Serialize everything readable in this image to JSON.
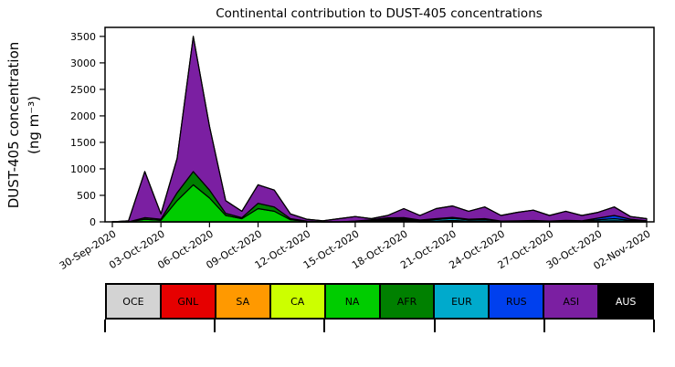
{
  "title": "Continental contribution to DUST-405 concentrations",
  "y_axis": {
    "label_line1": "DUST-405 concentration",
    "label_line2": "(ng m⁻³)",
    "ticks": [
      0,
      500,
      1000,
      1500,
      2000,
      2500,
      3000,
      3500
    ]
  },
  "x_axis": {
    "ticks": [
      {
        "index": 0,
        "label": "30-Sep-2020"
      },
      {
        "index": 3,
        "label": "03-Oct-2020"
      },
      {
        "index": 6,
        "label": "06-Oct-2020"
      },
      {
        "index": 9,
        "label": "09-Oct-2020"
      },
      {
        "index": 12,
        "label": "12-Oct-2020"
      },
      {
        "index": 15,
        "label": "15-Oct-2020"
      },
      {
        "index": 18,
        "label": "18-Oct-2020"
      },
      {
        "index": 21,
        "label": "21-Oct-2020"
      },
      {
        "index": 24,
        "label": "24-Oct-2020"
      },
      {
        "index": 27,
        "label": "27-Oct-2020"
      },
      {
        "index": 30,
        "label": "30-Oct-2020"
      },
      {
        "index": 33,
        "label": "02-Nov-2020"
      }
    ]
  },
  "chart_data": {
    "type": "area",
    "stacked": true,
    "title": "Continental contribution to DUST-405 concentrations",
    "ylabel": "DUST-405 concentration (ng m⁻³)",
    "ylim": [
      0,
      3670
    ],
    "grid": false,
    "legend_position": "bottom-bar",
    "x_dates": [
      "30-Sep-2020",
      "01-Oct-2020",
      "02-Oct-2020",
      "03-Oct-2020",
      "04-Oct-2020",
      "05-Oct-2020",
      "06-Oct-2020",
      "07-Oct-2020",
      "08-Oct-2020",
      "09-Oct-2020",
      "10-Oct-2020",
      "11-Oct-2020",
      "12-Oct-2020",
      "13-Oct-2020",
      "14-Oct-2020",
      "15-Oct-2020",
      "16-Oct-2020",
      "17-Oct-2020",
      "18-Oct-2020",
      "19-Oct-2020",
      "20-Oct-2020",
      "21-Oct-2020",
      "22-Oct-2020",
      "23-Oct-2020",
      "24-Oct-2020",
      "25-Oct-2020",
      "26-Oct-2020",
      "27-Oct-2020",
      "28-Oct-2020",
      "29-Oct-2020",
      "30-Oct-2020",
      "31-Oct-2020",
      "01-Nov-2020",
      "02-Nov-2020"
    ],
    "series": [
      {
        "name": "OCE",
        "color": "#d3d3d3",
        "values": [
          0,
          0,
          0,
          0,
          0,
          0,
          0,
          0,
          0,
          0,
          0,
          0,
          0,
          0,
          0,
          0,
          0,
          0,
          0,
          0,
          0,
          0,
          0,
          0,
          0,
          0,
          0,
          0,
          0,
          0,
          0,
          0,
          0,
          0
        ]
      },
      {
        "name": "GNL",
        "color": "#e60000",
        "values": [
          0,
          0,
          0,
          0,
          0,
          0,
          0,
          0,
          0,
          0,
          0,
          0,
          0,
          0,
          0,
          0,
          10,
          15,
          5,
          0,
          0,
          0,
          0,
          0,
          0,
          0,
          0,
          0,
          0,
          0,
          0,
          0,
          0,
          0
        ]
      },
      {
        "name": "SA",
        "color": "#ff9900",
        "values": [
          0,
          0,
          0,
          0,
          0,
          0,
          0,
          0,
          0,
          0,
          0,
          0,
          0,
          0,
          0,
          0,
          5,
          10,
          5,
          0,
          0,
          0,
          0,
          0,
          0,
          0,
          0,
          0,
          0,
          0,
          0,
          0,
          0,
          0
        ]
      },
      {
        "name": "CA",
        "color": "#ccff00",
        "values": [
          0,
          0,
          0,
          0,
          0,
          0,
          0,
          0,
          0,
          0,
          0,
          0,
          0,
          0,
          0,
          0,
          10,
          20,
          10,
          0,
          0,
          0,
          0,
          0,
          0,
          0,
          0,
          0,
          0,
          0,
          0,
          0,
          0,
          0
        ]
      },
      {
        "name": "NA",
        "color": "#00cc00",
        "values": [
          0,
          0,
          50,
          30,
          400,
          700,
          450,
          120,
          60,
          250,
          200,
          40,
          10,
          0,
          0,
          10,
          10,
          20,
          20,
          10,
          10,
          15,
          10,
          10,
          5,
          5,
          5,
          5,
          5,
          5,
          10,
          15,
          10,
          5
        ]
      },
      {
        "name": "AFR",
        "color": "#008000",
        "values": [
          0,
          0,
          30,
          20,
          150,
          250,
          150,
          40,
          20,
          100,
          80,
          20,
          5,
          0,
          0,
          5,
          5,
          10,
          10,
          5,
          5,
          10,
          5,
          5,
          0,
          0,
          0,
          0,
          0,
          0,
          5,
          5,
          5,
          0
        ]
      },
      {
        "name": "EUR",
        "color": "#00aacc",
        "values": [
          0,
          0,
          0,
          0,
          0,
          0,
          0,
          0,
          0,
          0,
          0,
          0,
          0,
          0,
          0,
          0,
          0,
          0,
          20,
          15,
          30,
          40,
          25,
          30,
          10,
          15,
          20,
          10,
          15,
          10,
          25,
          40,
          15,
          10
        ]
      },
      {
        "name": "RUS",
        "color": "#0040ee",
        "values": [
          0,
          0,
          0,
          0,
          0,
          0,
          0,
          0,
          0,
          0,
          0,
          0,
          0,
          0,
          0,
          0,
          0,
          0,
          10,
          5,
          15,
          20,
          10,
          15,
          0,
          0,
          0,
          0,
          10,
          5,
          30,
          60,
          20,
          5
        ]
      },
      {
        "name": "ASI",
        "color": "#7b1fa2",
        "values": [
          0,
          20,
          870,
          100,
          650,
          2550,
          1200,
          240,
          120,
          350,
          320,
          90,
          35,
          20,
          60,
          85,
          20,
          45,
          170,
          85,
          190,
          215,
          150,
          220,
          105,
          160,
          195,
          105,
          170,
          100,
          110,
          160,
          50,
          40
        ]
      },
      {
        "name": "AUS",
        "color": "#000000",
        "values": [
          0,
          0,
          0,
          0,
          0,
          0,
          0,
          0,
          0,
          0,
          0,
          0,
          0,
          0,
          0,
          0,
          0,
          0,
          0,
          0,
          0,
          0,
          0,
          0,
          0,
          0,
          0,
          0,
          0,
          0,
          0,
          0,
          0,
          0
        ]
      }
    ]
  },
  "legend": {
    "items": [
      {
        "label": "OCE",
        "color": "#d3d3d3",
        "text_color": "#000000"
      },
      {
        "label": "GNL",
        "color": "#e60000",
        "text_color": "#000000"
      },
      {
        "label": "SA",
        "color": "#ff9900",
        "text_color": "#000000"
      },
      {
        "label": "CA",
        "color": "#ccff00",
        "text_color": "#000000"
      },
      {
        "label": "NA",
        "color": "#00cc00",
        "text_color": "#000000"
      },
      {
        "label": "AFR",
        "color": "#008000",
        "text_color": "#000000"
      },
      {
        "label": "EUR",
        "color": "#00aacc",
        "text_color": "#000000"
      },
      {
        "label": "RUS",
        "color": "#0040ee",
        "text_color": "#000000"
      },
      {
        "label": "ASI",
        "color": "#7b1fa2",
        "text_color": "#000000"
      },
      {
        "label": "AUS",
        "color": "#000000",
        "text_color": "#ffffff"
      }
    ]
  }
}
